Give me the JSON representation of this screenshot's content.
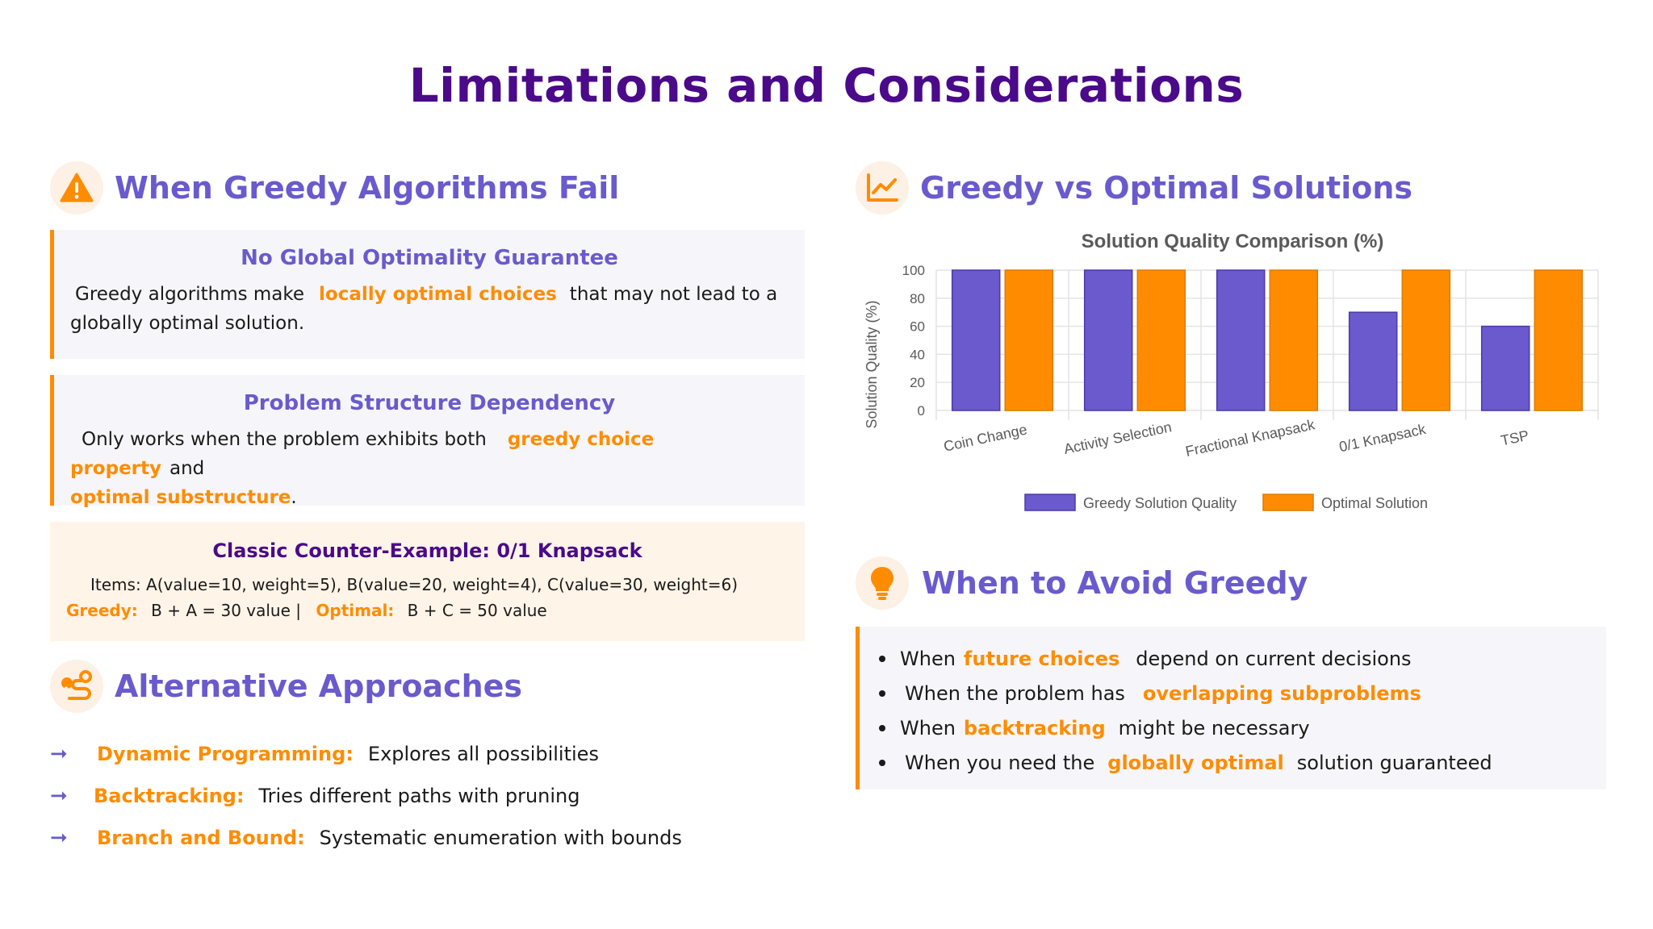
{
  "title": "Limitations and Considerations",
  "left": {
    "fail": {
      "heading": "When Greedy Algorithms Fail",
      "icon": "warning-icon",
      "cards": [
        {
          "title": "No Global Optimality Guarantee",
          "pre": "Greedy algorithms make",
          "hl": "locally optimal choices",
          "post": "that may not lead to a globally optimal solution."
        },
        {
          "title": "Problem Structure Dependency",
          "pre": "Only works when the problem exhibits both",
          "hl1": "greedy choice property",
          "mid": "and",
          "hl2": "optimal substructure",
          "post": "."
        }
      ],
      "counter": {
        "title": "Classic Counter-Example: 0/1 Knapsack",
        "items": "Items: A(value=10, weight=5), B(value=20, weight=4), C(value=30, weight=6)",
        "greedy_label": "Greedy:",
        "greedy_value": "B + A = 30 value |",
        "optimal_label": "Optimal:",
        "optimal_value": "B + C = 50 value"
      }
    },
    "alternatives": {
      "heading": "Alternative Approaches",
      "icon": "route-icon",
      "items": [
        {
          "name": "Dynamic Programming:",
          "desc": "Explores all possibilities"
        },
        {
          "name": "Backtracking:",
          "desc": "Tries different paths with pruning"
        },
        {
          "name": "Branch and Bound:",
          "desc": "Systematic enumeration with bounds"
        }
      ]
    }
  },
  "right": {
    "comparison": {
      "heading": "Greedy vs Optimal Solutions",
      "icon": "line-chart-icon"
    },
    "avoid": {
      "heading": "When to Avoid Greedy",
      "icon": "lightbulb-icon",
      "items": [
        {
          "pre": "When",
          "hl": "future choices",
          "post": "depend on current decisions"
        },
        {
          "pre": "When the problem has",
          "hl": "overlapping subproblems",
          "post": ""
        },
        {
          "pre": "When",
          "hl": "backtracking",
          "post": "might be necessary"
        },
        {
          "pre": "When you need the",
          "hl": "globally optimal",
          "post": "solution guaranteed"
        }
      ]
    }
  },
  "chart_data": {
    "type": "bar",
    "title": "Solution Quality Comparison (%)",
    "ylabel": "Solution Quality (%)",
    "xlabel": "",
    "ylim": [
      0,
      100
    ],
    "yticks": [
      "0",
      "20",
      "40",
      "60",
      "80",
      "100"
    ],
    "grid": true,
    "legend_position": "bottom",
    "categories": [
      "Coin Change",
      "Activity Selection",
      "Fractional Knapsack",
      "0/1 Knapsack",
      "TSP"
    ],
    "series": [
      {
        "name": "Greedy Solution Quality",
        "color": "#6a5acd",
        "values": [
          100,
          100,
          100,
          70,
          60
        ]
      },
      {
        "name": "Optimal Solution",
        "color": "#ff8c00",
        "values": [
          100,
          100,
          100,
          100,
          100
        ]
      }
    ]
  }
}
